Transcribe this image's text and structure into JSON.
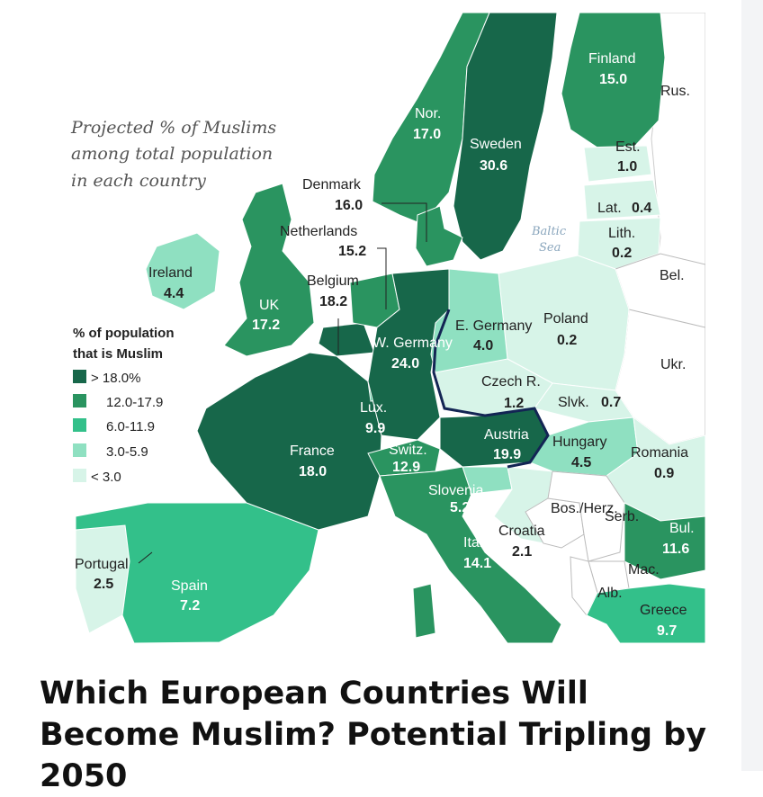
{
  "headline": "Which European Countries Will Become Muslim? Potential Tripling by 2050",
  "map": {
    "title_lines": [
      "Projected % of Muslims",
      "among total population",
      "in each country"
    ],
    "legend": {
      "title_lines": [
        "% of population",
        "that is Muslim"
      ],
      "items": [
        {
          "label": "> 18.0%",
          "color": "#17674a"
        },
        {
          "label": "12.0-17.9",
          "color": "#2a9460"
        },
        {
          "label": "6.0-11.9",
          "color": "#33c08a"
        },
        {
          "label": "3.0-5.9",
          "color": "#8fe0c1"
        },
        {
          "label": "< 3.0",
          "color": "#d7f4e8"
        }
      ]
    },
    "sea_label_lines": [
      "Baltic",
      "Sea"
    ],
    "countries": [
      {
        "name": "Finland",
        "value": "15.0"
      },
      {
        "name": "Rus.",
        "value": ""
      },
      {
        "name": "Nor.",
        "value": "17.0"
      },
      {
        "name": "Sweden",
        "value": "30.6"
      },
      {
        "name": "Est.",
        "value": "1.0"
      },
      {
        "name": "Lat.",
        "value": "0.4"
      },
      {
        "name": "Lith.",
        "value": "0.2"
      },
      {
        "name": "Denmark",
        "value": "16.0"
      },
      {
        "name": "Netherlands",
        "value": "15.2"
      },
      {
        "name": "Bel.",
        "value": ""
      },
      {
        "name": "Ireland",
        "value": "4.4"
      },
      {
        "name": "Belgium",
        "value": "18.2"
      },
      {
        "name": "UK",
        "value": "17.2"
      },
      {
        "name": "E. Germany",
        "value": "4.0"
      },
      {
        "name": "Poland",
        "value": "0.2"
      },
      {
        "name": "W. Germany",
        "value": "24.0"
      },
      {
        "name": "Ukr.",
        "value": ""
      },
      {
        "name": "Czech R.",
        "value": "1.2"
      },
      {
        "name": "Slvk.",
        "value": "0.7"
      },
      {
        "name": "Lux.",
        "value": "9.9"
      },
      {
        "name": "Austria",
        "value": "19.9"
      },
      {
        "name": "Hungary",
        "value": "4.5"
      },
      {
        "name": "Romania",
        "value": "0.9"
      },
      {
        "name": "France",
        "value": "18.0"
      },
      {
        "name": "Switz.",
        "value": "12.9"
      },
      {
        "name": "Slovenia",
        "value": "5.2"
      },
      {
        "name": "Bos./Herz.",
        "value": ""
      },
      {
        "name": "Serb.",
        "value": ""
      },
      {
        "name": "Croatia",
        "value": "2.1"
      },
      {
        "name": "Bul.",
        "value": "11.6"
      },
      {
        "name": "Italy",
        "value": "14.1"
      },
      {
        "name": "Mac.",
        "value": ""
      },
      {
        "name": "Portugal",
        "value": "2.5"
      },
      {
        "name": "Alb.",
        "value": ""
      },
      {
        "name": "Spain",
        "value": "7.2"
      },
      {
        "name": "Greece",
        "value": "9.7"
      }
    ]
  }
}
